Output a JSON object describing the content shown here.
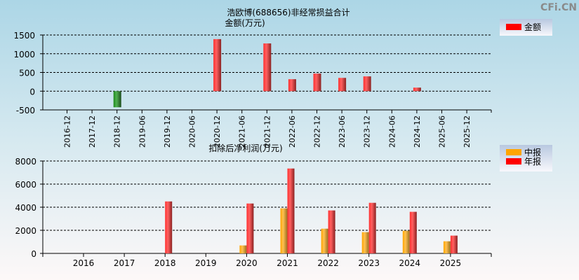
{
  "watermark": "CFi.CN",
  "chart_data": [
    {
      "type": "bar",
      "title": "浩欧博(688656)非经常损益合计",
      "ylabel": "金额(万元)",
      "categories": [
        "2016-12",
        "2017-12",
        "2018-12",
        "2019-06",
        "2019-12",
        "2020-06",
        "2020-12",
        "2021-06",
        "2021-12",
        "2022-06",
        "2022-12",
        "2023-06",
        "2023-12",
        "2024-06",
        "2024-12",
        "2025-06",
        "2025-12"
      ],
      "series": [
        {
          "name": "金额",
          "values": [
            null,
            null,
            -430,
            null,
            null,
            null,
            1390,
            null,
            1275,
            320,
            470,
            355,
            395,
            null,
            95,
            null,
            null
          ]
        }
      ],
      "yticks": [
        1500,
        1000,
        500,
        0,
        -500
      ],
      "ylim": [
        -500,
        1500
      ],
      "grid": true,
      "legend": "top-right",
      "colors": {
        "positive": "#ff0000",
        "negative": "#2e8b2e"
      }
    },
    {
      "type": "bar",
      "title": "扣除后净利润(万元)",
      "categories": [
        "2016",
        "2017",
        "2018",
        "2019",
        "2020",
        "2021",
        "2022",
        "2023",
        "2024",
        "2025"
      ],
      "series": [
        {
          "name": "中报",
          "color": "#ffa500",
          "values": [
            null,
            null,
            null,
            null,
            690,
            3900,
            2140,
            1840,
            1960,
            1050
          ]
        },
        {
          "name": "年报",
          "color": "#ff0000",
          "values": [
            null,
            null,
            4500,
            null,
            4320,
            7350,
            3720,
            4380,
            3600,
            1540
          ]
        }
      ],
      "yticks": [
        8000,
        6000,
        4000,
        2000,
        0
      ],
      "ylim": [
        0,
        8000
      ],
      "grid": true,
      "legend": "top-right"
    }
  ]
}
